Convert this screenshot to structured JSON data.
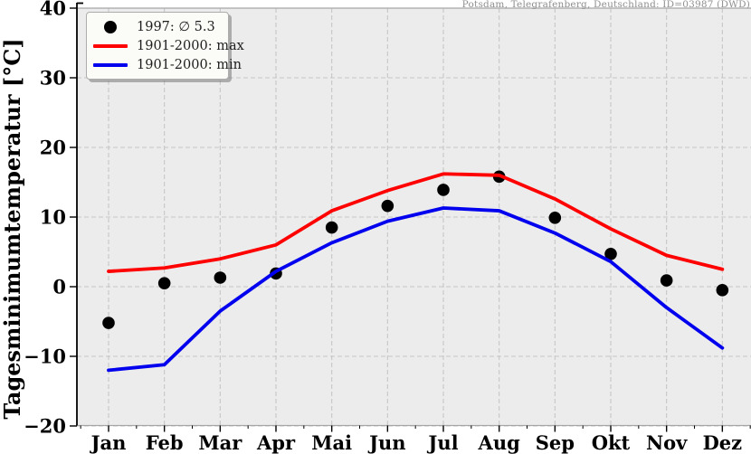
{
  "header": {
    "station_title": "Potsdam, Telegrafenberg, Deutschland: ID=03987 (DWD)"
  },
  "axes": {
    "ylabel": "Tagesminimumtemperatur [°C]",
    "yticks": [
      40,
      30,
      20,
      10,
      0,
      -10,
      -20
    ],
    "ylim": [
      -20,
      40
    ]
  },
  "legend": {
    "position": "upper left",
    "items": [
      {
        "marker": "dot-marker",
        "color": "#000000",
        "label": "1997: ∅ 5.3"
      },
      {
        "marker": "line-marker",
        "color": "#ff0000",
        "label": "1901-2000: max"
      },
      {
        "marker": "line-marker",
        "color": "#0000ee",
        "label": "1901-2000: min"
      }
    ]
  },
  "colors": {
    "plot_background": "#ececec",
    "grid": "#c6c6c6",
    "spine": "#a6a6a6",
    "axis_black": "#000000",
    "dots": "#000000",
    "max_line": "#ff0000",
    "min_line": "#0000ee",
    "title_gray": "#8f8f8f"
  },
  "chart_data": {
    "type": "line",
    "title": "Potsdam, Telegrafenberg, Deutschland: ID=03987 (DWD)",
    "ylabel": "Tagesminimumtemperatur [°C]",
    "xlabel": "",
    "categories": [
      "Jan",
      "Feb",
      "Mar",
      "Apr",
      "Mai",
      "Jun",
      "Jul",
      "Aug",
      "Sep",
      "Okt",
      "Nov",
      "Dez"
    ],
    "ylim": [
      -20,
      40
    ],
    "yticks": [
      -20,
      -10,
      0,
      10,
      20,
      30,
      40
    ],
    "grid": true,
    "grid_style": "dashed",
    "legend_position": "upper left",
    "series": [
      {
        "name": "1997: ∅ 5.3",
        "plot_type": "scatter",
        "color": "#000000",
        "values": [
          -5.2,
          0.5,
          1.3,
          1.9,
          8.5,
          11.6,
          13.9,
          15.8,
          9.9,
          4.7,
          0.9,
          -0.5
        ],
        "annual_mean": 5.3
      },
      {
        "name": "1901-2000: max",
        "plot_type": "line",
        "color": "#ff0000",
        "values": [
          2.2,
          2.7,
          4.0,
          6.0,
          10.9,
          13.8,
          16.2,
          16.0,
          12.6,
          8.3,
          4.5,
          2.5
        ]
      },
      {
        "name": "1901-2000: min",
        "plot_type": "line",
        "color": "#0000ee",
        "values": [
          -12.0,
          -11.2,
          -3.5,
          2.2,
          6.3,
          9.4,
          11.3,
          10.9,
          7.7,
          3.6,
          -3.0,
          -8.8
        ]
      }
    ]
  }
}
